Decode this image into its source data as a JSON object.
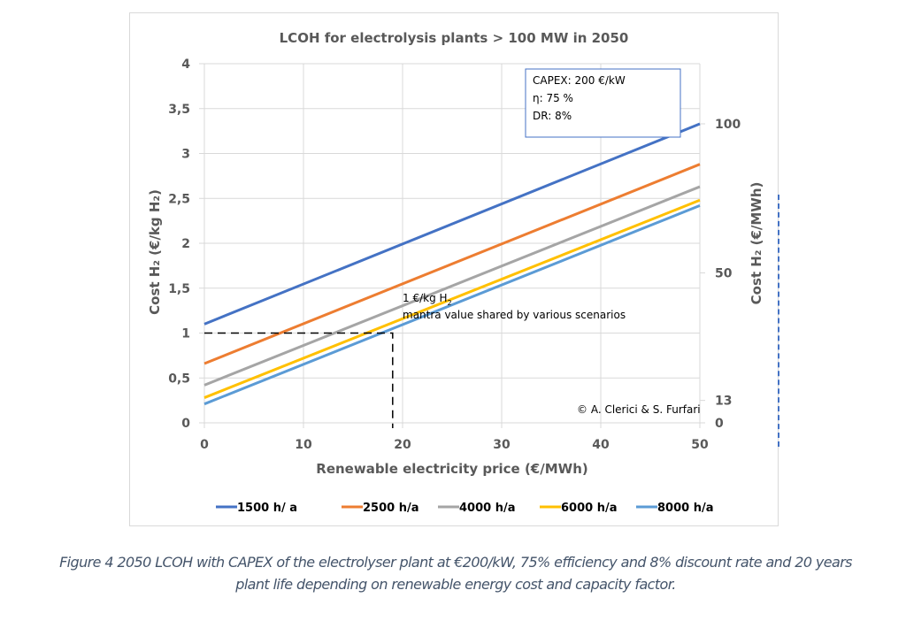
{
  "chart_data": {
    "type": "line",
    "title": "LCOH for electrolysis plants > 100 MW in 2050",
    "xlabel": "Renewable electricity price (€/MWh)",
    "ylabel": "Cost H₂ (€/kg H₂)",
    "y2label": "Cost H₂ (€/MWh)",
    "xlim": [
      0,
      50
    ],
    "ylim": [
      0,
      4
    ],
    "x_ticks": [
      "0",
      "10",
      "20",
      "30",
      "40",
      "50"
    ],
    "y_ticks": [
      "0",
      "0,5",
      "1",
      "1,5",
      "2",
      "2,5",
      "3",
      "3,5",
      "4"
    ],
    "y2_ticks": [
      {
        "label": "100",
        "y": 3.33
      },
      {
        "label": "50",
        "y": 1.67
      },
      {
        "label": "13",
        "y": 0.25
      },
      {
        "label": "0",
        "y": 0
      }
    ],
    "grid": true,
    "legend_position": "bottom",
    "x": [
      0,
      50
    ],
    "series": [
      {
        "name": "1500 h/ a",
        "color": "#4472c4",
        "values": [
          1.1,
          3.33
        ]
      },
      {
        "name": "2500 h/a",
        "color": "#ed7d31",
        "values": [
          0.66,
          2.88
        ]
      },
      {
        "name": "4000 h/a",
        "color": "#a5a5a5",
        "values": [
          0.42,
          2.63
        ]
      },
      {
        "name": "6000 h/a",
        "color": "#ffc000",
        "values": [
          0.28,
          2.48
        ]
      },
      {
        "name": "8000 h/a",
        "color": "#5b9bd5",
        "values": [
          0.21,
          2.42
        ]
      }
    ],
    "reference_line": {
      "y": 1,
      "x": 19,
      "style": "dashed",
      "color": "#000000"
    },
    "annotations": {
      "params_box": [
        "CAPEX: 200 €/kW",
        "η: 75 %",
        "DR: 8%"
      ],
      "mantra_line1": "1 €/kg H",
      "mantra_line1_sub": "2",
      "mantra_line2": "mantra value shared by various scenarios",
      "copyright": "© A. Clerici & S. Furfari"
    }
  },
  "caption": {
    "line1": "Figure 4 2050 LCOH with CAPEX of the electrolyser plant at €200/kW, 75% efficiency and 8% discount rate and 20 years",
    "line2": "plant life depending on renewable energy cost and capacity factor."
  }
}
